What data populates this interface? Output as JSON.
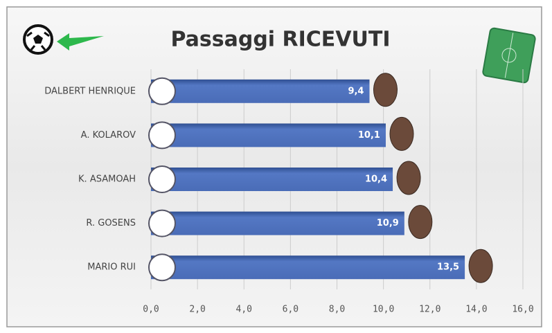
{
  "chart_data": {
    "type": "bar",
    "orientation": "horizontal",
    "title": "Passaggi RICEVUTI",
    "categories": [
      "DALBERT HENRIQUE",
      "A. KOLAROV",
      "K. ASAMOAH",
      "R. GOSENS",
      "MARIO RUI"
    ],
    "values": [
      9.4,
      10.1,
      10.4,
      10.9,
      13.5
    ],
    "value_labels": [
      "9,4",
      "10,1",
      "10,4",
      "10,9",
      "13,5"
    ],
    "color": "#4a6cb7",
    "xlim": [
      0,
      16
    ],
    "xticks": [
      {
        "value": 0,
        "label": "0,0"
      },
      {
        "value": 2,
        "label": "2,0"
      },
      {
        "value": 4,
        "label": "4,0"
      },
      {
        "value": 6,
        "label": "6,0"
      },
      {
        "value": 8,
        "label": "8,0"
      },
      {
        "value": 10,
        "label": "10,0"
      },
      {
        "value": 12,
        "label": "12,0"
      },
      {
        "value": 14,
        "label": "14,0"
      },
      {
        "value": 16,
        "label": "16,0"
      }
    ],
    "grid": true
  }
}
